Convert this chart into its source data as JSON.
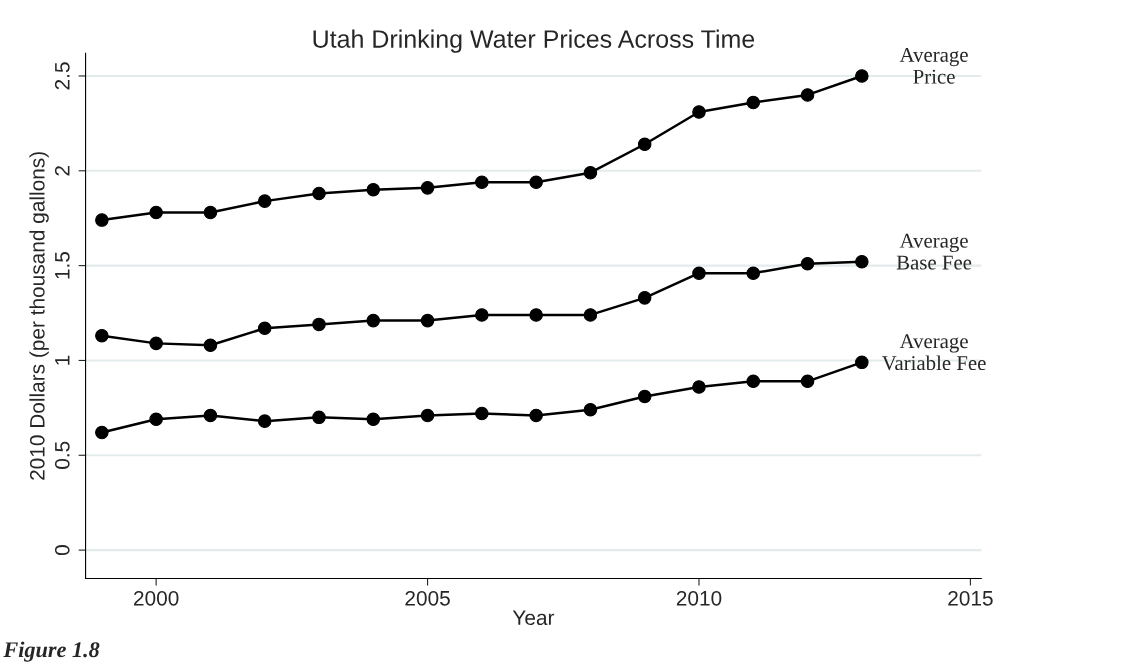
{
  "chart_data": {
    "type": "line",
    "title": "Utah Drinking Water Prices Across Time",
    "xlabel": "Year",
    "ylabel": "2010 Dollars (per thousand gallons)",
    "x": [
      1999,
      2000,
      2001,
      2002,
      2003,
      2004,
      2005,
      2006,
      2007,
      2008,
      2009,
      2010,
      2011,
      2012,
      2013
    ],
    "series": [
      {
        "name": "Average\nPrice",
        "color": "#000000",
        "values": [
          1.74,
          1.78,
          1.78,
          1.84,
          1.88,
          1.9,
          1.91,
          1.94,
          1.94,
          1.99,
          2.14,
          2.31,
          2.36,
          2.4,
          2.5
        ]
      },
      {
        "name": "Average\nBase Fee",
        "color": "#000000",
        "values": [
          1.13,
          1.09,
          1.08,
          1.17,
          1.19,
          1.21,
          1.21,
          1.24,
          1.24,
          1.24,
          1.33,
          1.46,
          1.46,
          1.51,
          1.52
        ]
      },
      {
        "name": "Average\nVariable Fee",
        "color": "#000000",
        "values": [
          0.62,
          0.69,
          0.71,
          0.68,
          0.7,
          0.69,
          0.71,
          0.72,
          0.71,
          0.74,
          0.81,
          0.86,
          0.89,
          0.89,
          0.99
        ]
      }
    ],
    "xlim": [
      1998.7,
      2015.2
    ],
    "xticks": [
      2000,
      2005,
      2010,
      2015
    ],
    "ylim": [
      -0.15,
      2.62
    ],
    "yticks": [
      0,
      0.5,
      1,
      1.5,
      2,
      2.5
    ],
    "grid": "y",
    "marker": "circle",
    "line_style": "solid",
    "annotations": [
      "Figure 1.8"
    ]
  }
}
